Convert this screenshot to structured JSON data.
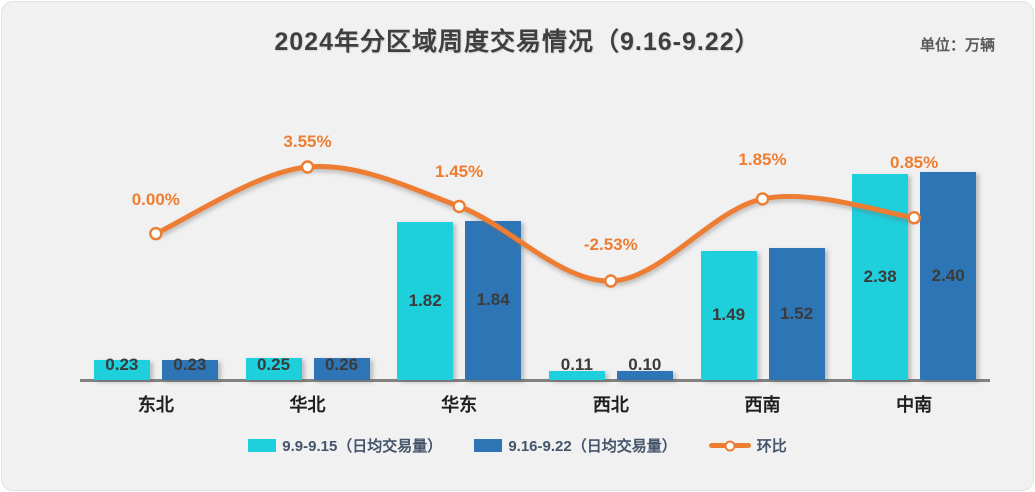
{
  "header": {
    "title": "2024年分区域周度交易情况（9.16-9.22）",
    "unit_label": "单位：万辆"
  },
  "chart_data": {
    "type": "combo",
    "title": "2024年分区域周度交易情况（9.16-9.22）",
    "unit_label": "单位：万辆",
    "categories": [
      "东北",
      "华北",
      "华东",
      "西北",
      "西南",
      "中南"
    ],
    "series": [
      {
        "name": "9.9-9.15（日均交易量）",
        "type": "bar",
        "color": "#1ECFDC",
        "values": [
          0.23,
          0.25,
          1.82,
          0.11,
          1.49,
          2.38
        ],
        "value_labels": [
          "0.23",
          "0.25",
          "1.82",
          "0.11",
          "1.49",
          "2.38"
        ]
      },
      {
        "name": "9.16-9.22（日均交易量）",
        "type": "bar",
        "color": "#2E75B6",
        "values": [
          0.23,
          0.26,
          1.84,
          0.1,
          1.52,
          2.4
        ],
        "value_labels": [
          "0.23",
          "0.26",
          "1.84",
          "0.10",
          "1.52",
          "2.40"
        ]
      },
      {
        "name": "环比",
        "type": "line",
        "color": "#ED7D31",
        "unit": "%",
        "values": [
          0.0,
          3.55,
          1.45,
          -2.53,
          1.85,
          0.85
        ],
        "point_labels": [
          "0.00%",
          "3.55%",
          "1.45%",
          "-2.53%",
          "1.85%",
          "0.85%"
        ]
      }
    ],
    "legend_position": "bottom",
    "grid": false,
    "value_axis_visible": false,
    "colors": {
      "background": "#F1F1F2",
      "axis_line": "#828282",
      "title_text": "#3f3f3f",
      "bar_label_text": "#3b3b3b",
      "legend_text": "#44546A",
      "line_label_text": "#ED7D31"
    }
  }
}
